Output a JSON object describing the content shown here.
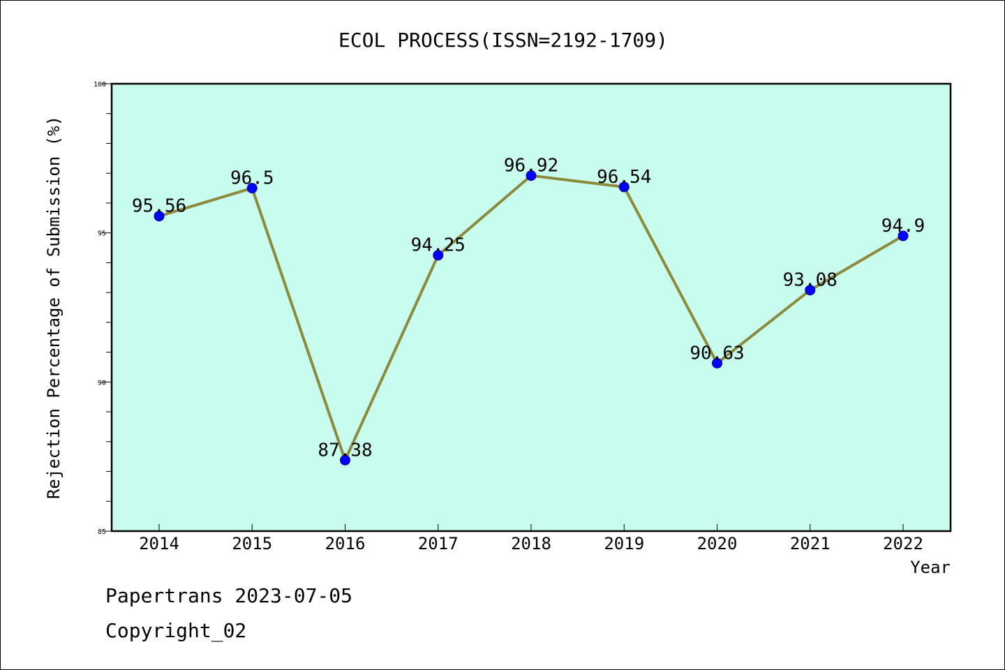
{
  "chart_data": {
    "type": "line",
    "title": "ECOL PROCESS(ISSN=2192-1709)",
    "xlabel": "Year",
    "ylabel": "Rejection Percentage of Submission (%)",
    "categories": [
      "2014",
      "2015",
      "2016",
      "2017",
      "2018",
      "2019",
      "2020",
      "2021",
      "2022"
    ],
    "series": [
      {
        "values": [
          95.56,
          96.5,
          87.38,
          94.25,
          96.92,
          96.54,
          90.63,
          93.08,
          94.9
        ]
      }
    ],
    "data_labels": [
      "95.56",
      "96.5",
      "87.38",
      "94.25",
      "96.92",
      "96.54",
      "90.63",
      "93.08",
      "94.9"
    ],
    "ylim": [
      85,
      100
    ],
    "yticks": [
      85,
      90,
      95,
      100
    ],
    "ytick_labels": [
      "85",
      "90",
      "95",
      "100"
    ],
    "grid": false,
    "colors": {
      "plot_background": "#c8fcee",
      "line": "#8c8a3c",
      "marker": "#0000ff"
    }
  },
  "footer": {
    "line1": "Papertrans 2023-07-05",
    "line2": "Copyright_02"
  }
}
